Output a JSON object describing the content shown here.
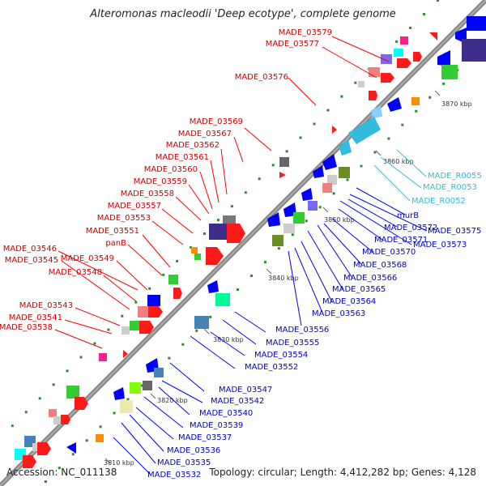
{
  "title": "Alteromonas macleodii 'Deep ecotype', complete genome",
  "footer": {
    "accession": "Accession: NC_011138",
    "info": "Topology: circular; Length: 4,412,282 bp; Genes: 4,128"
  },
  "colors": {
    "left_labels": "#cc0000",
    "right_labels": "#0000cc",
    "rna_labels": "#33bbdd",
    "backbone": "#888888"
  },
  "scale_ticks": [
    {
      "label": "3810 kbp"
    },
    {
      "label": "3820 kbp"
    },
    {
      "label": "3830 kbp"
    },
    {
      "label": "3840 kbp"
    },
    {
      "label": "3850 kbp"
    },
    {
      "label": "3860 kbp"
    },
    {
      "label": "3870 kbp"
    }
  ],
  "left_labels": [
    {
      "text": "MADE_03579"
    },
    {
      "text": "MADE_03577"
    },
    {
      "text": "MADE_03576"
    },
    {
      "text": "MADE_03569"
    },
    {
      "text": "MADE_03567"
    },
    {
      "text": "MADE_03562"
    },
    {
      "text": "MADE_03561"
    },
    {
      "text": "MADE_03560"
    },
    {
      "text": "MADE_03559"
    },
    {
      "text": "MADE_03558"
    },
    {
      "text": "MADE_03557"
    },
    {
      "text": "MADE_03553"
    },
    {
      "text": "MADE_03551"
    },
    {
      "text": "panB"
    },
    {
      "text": "MADE_03546"
    },
    {
      "text": "MADE_03549"
    },
    {
      "text": "MADE_03545"
    },
    {
      "text": "MADE_03548"
    },
    {
      "text": "MADE_03543"
    },
    {
      "text": "MADE_03541"
    },
    {
      "text": "MADE_03538"
    }
  ],
  "right_labels": [
    {
      "text": "MADE_R0055"
    },
    {
      "text": "MADE_R0053"
    },
    {
      "text": "MADE_R0052"
    },
    {
      "text": "murB"
    },
    {
      "text": "MADE_03575"
    },
    {
      "text": "MADE_03572"
    },
    {
      "text": "MADE_03571"
    },
    {
      "text": "MADE_03573"
    },
    {
      "text": "MADE_03570"
    },
    {
      "text": "MADE_03568"
    },
    {
      "text": "MADE_03566"
    },
    {
      "text": "MADE_03565"
    },
    {
      "text": "MADE_03564"
    },
    {
      "text": "MADE_03563"
    },
    {
      "text": "MADE_03556"
    },
    {
      "text": "MADE_03555"
    },
    {
      "text": "MADE_03554"
    },
    {
      "text": "MADE_03552"
    },
    {
      "text": "MADE_03547"
    },
    {
      "text": "MADE_03542"
    },
    {
      "text": "MADE_03540"
    },
    {
      "text": "MADE_03539"
    },
    {
      "text": "MADE_03537"
    },
    {
      "text": "MADE_03536"
    },
    {
      "text": "MADE_03535"
    },
    {
      "text": "MADE_03532"
    }
  ]
}
